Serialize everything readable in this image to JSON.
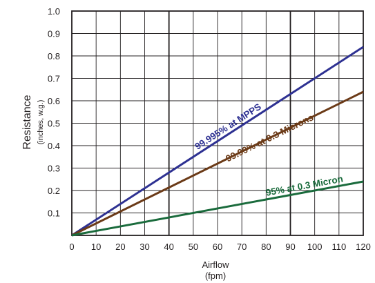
{
  "chart_data": {
    "type": "line",
    "xlabel": "Airflow",
    "xlabel_unit": "(fpm)",
    "ylabel": "Resistance",
    "ylabel_unit": "(inches, w.g.)",
    "xlim": [
      0,
      120
    ],
    "ylim": [
      0,
      1.0
    ],
    "x_ticks": [
      0,
      10,
      20,
      30,
      40,
      50,
      60,
      70,
      80,
      90,
      100,
      110,
      120
    ],
    "x_tick_labels": [
      "0",
      "10",
      "20",
      "30",
      "40",
      "50",
      "60",
      "70",
      "80",
      "90",
      "100",
      "110",
      "120"
    ],
    "y_ticks": [
      0.1,
      0.2,
      0.3,
      0.4,
      0.5,
      0.6,
      0.7,
      0.8,
      0.9,
      1.0
    ],
    "y_tick_labels": [
      "0.1",
      "0.2",
      "0.3",
      "0.4",
      "0.5",
      "0.6",
      "0.7",
      "0.8",
      "0.9",
      "1.0"
    ],
    "grid": true,
    "bold_gridlines_x": [
      40,
      90
    ],
    "series": [
      {
        "name": "99.995% at MPPS",
        "color": "#2e3192",
        "x": [
          0,
          120
        ],
        "y": [
          0,
          0.84
        ],
        "label_at_x": 65,
        "label_offset": -6
      },
      {
        "name": "99.99% at 0.3 Microns",
        "color": "#6b3a17",
        "x": [
          0,
          120
        ],
        "y": [
          0,
          0.64
        ],
        "label_at_x": 82,
        "label_offset": 5
      },
      {
        "name": "95% at 0.3 Micron",
        "color": "#1a6b3c",
        "x": [
          0,
          120
        ],
        "y": [
          0,
          0.24
        ],
        "label_at_x": 96,
        "label_offset": -5
      }
    ]
  }
}
